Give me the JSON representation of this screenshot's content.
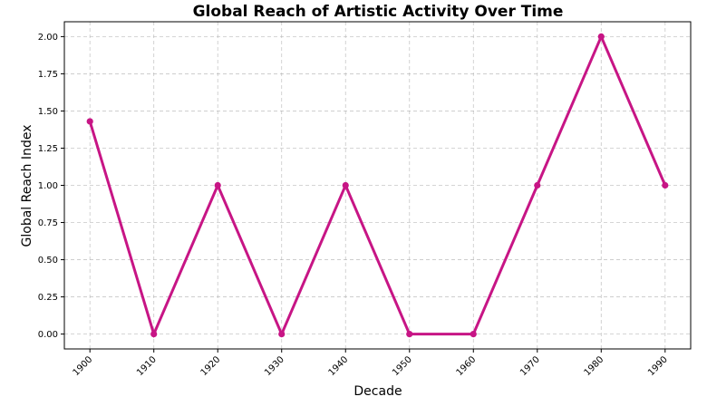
{
  "chart_data": {
    "type": "line",
    "title": "Global Reach of Artistic Activity Over Time",
    "xlabel": "Decade",
    "ylabel": "Global Reach Index",
    "x": [
      1900,
      1910,
      1920,
      1930,
      1940,
      1950,
      1960,
      1970,
      1980,
      1990
    ],
    "series": [
      {
        "values": [
          1.43,
          0,
          1,
          0,
          1,
          0,
          0,
          1,
          2,
          1
        ],
        "color": "#c71585"
      }
    ],
    "yticks": [
      0.0,
      0.25,
      0.5,
      0.75,
      1.0,
      1.25,
      1.5,
      1.75,
      2.0
    ],
    "ytick_labels": [
      "0.00",
      "0.25",
      "0.50",
      "0.75",
      "1.00",
      "1.25",
      "1.50",
      "1.75",
      "2.00"
    ],
    "xtick_labels": [
      "1900",
      "1910",
      "1920",
      "1930",
      "1940",
      "1950",
      "1960",
      "1970",
      "1980",
      "1990"
    ],
    "ylim": [
      -0.1,
      2.1
    ],
    "xlim": [
      1896,
      1994
    ],
    "grid": true,
    "legend": false
  }
}
